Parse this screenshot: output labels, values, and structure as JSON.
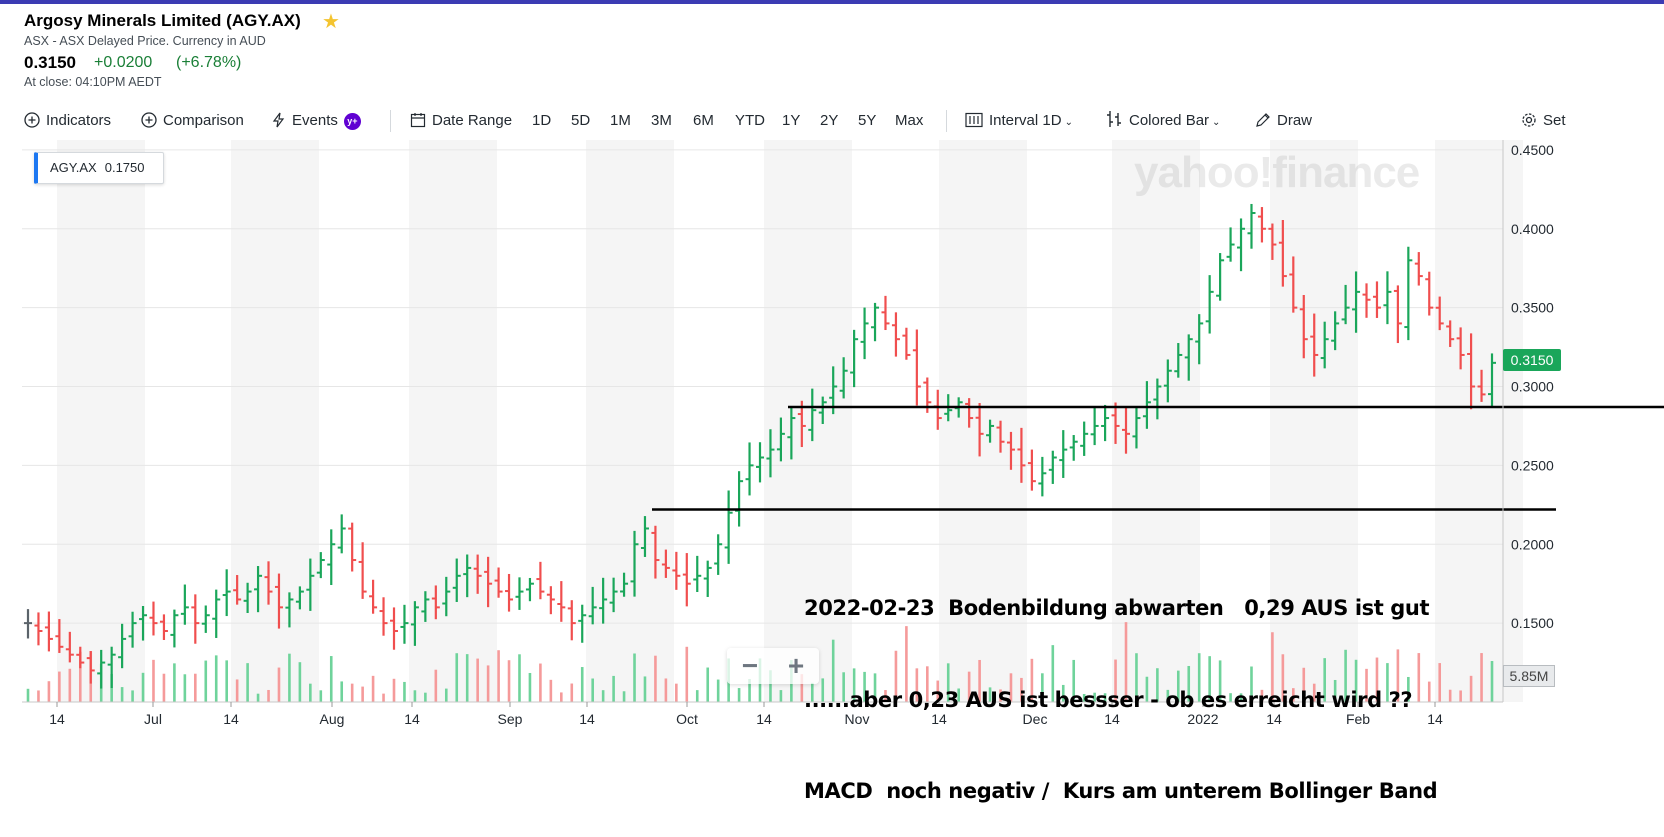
{
  "header": {
    "title": "Argosy Minerals Limited (AGY.AX)",
    "subtitle": "ASX - ASX Delayed Price. Currency in AUD",
    "price": "0.3150",
    "change": "+0.0200",
    "change_pct": "(+6.78%)",
    "close_time": "At close: 04:10PM AEDT"
  },
  "toolbar": {
    "indicators": "Indicators",
    "comparison": "Comparison",
    "events": "Events",
    "date_range": "Date Range",
    "ranges": [
      "1D",
      "5D",
      "1M",
      "3M",
      "6M",
      "YTD",
      "1Y",
      "2Y",
      "5Y",
      "Max"
    ],
    "interval_label": "Interval",
    "interval_value": "1D",
    "chart_type": "Colored Bar",
    "draw": "Draw",
    "settings": "Set"
  },
  "legend": {
    "symbol": "AGY.AX",
    "value": "0.1750"
  },
  "price_label": "0.3150",
  "volume_label": "5.85M",
  "watermark": "yahoo!finance",
  "annotation": {
    "line1": "2022-02-23  Bodenbildung abwarten   0,29 AUS ist gut",
    "line2": "......aber 0,23 AUS ist bessser - ob es erreicht wird ??",
    "line3": "MACD  noch negativ /  Kurs am unterem Bollinger Band"
  },
  "colors": {
    "up": "#1aa65a",
    "down": "#f04e4e",
    "neutral": "#5b636a",
    "accent": "#1d78f2"
  },
  "chart_data": {
    "type": "bar",
    "title": "",
    "x_tick_labels": [
      "14",
      "Jul",
      "14",
      "Aug",
      "14",
      "Sep",
      "14",
      "Oct",
      "14",
      "Nov",
      "14",
      "Dec",
      "14",
      "2022",
      "14",
      "Feb",
      "14"
    ],
    "y_ticks": [
      0.45,
      0.4,
      0.35,
      0.3,
      0.25,
      0.2,
      0.15
    ],
    "y_tick_labels": [
      "0.4500",
      "0.4000",
      "0.3500",
      "0.3000",
      "0.2500",
      "0.2000",
      "0.1500"
    ],
    "ylim": [
      0.1,
      0.455
    ],
    "grid": true,
    "horizontal_lines": [
      0.287,
      0.222
    ],
    "close_series": [
      0.15,
      0.145,
      0.14,
      0.135,
      0.13,
      0.125,
      0.12,
      0.125,
      0.13,
      0.14,
      0.15,
      0.155,
      0.15,
      0.145,
      0.155,
      0.16,
      0.15,
      0.155,
      0.165,
      0.17,
      0.165,
      0.17,
      0.18,
      0.17,
      0.16,
      0.165,
      0.17,
      0.18,
      0.19,
      0.2,
      0.21,
      0.19,
      0.17,
      0.16,
      0.15,
      0.145,
      0.15,
      0.16,
      0.165,
      0.16,
      0.17,
      0.18,
      0.185,
      0.18,
      0.175,
      0.17,
      0.165,
      0.17,
      0.175,
      0.17,
      0.165,
      0.16,
      0.15,
      0.155,
      0.16,
      0.165,
      0.17,
      0.175,
      0.2,
      0.21,
      0.19,
      0.185,
      0.18,
      0.175,
      0.18,
      0.185,
      0.2,
      0.22,
      0.24,
      0.25,
      0.255,
      0.26,
      0.27,
      0.28,
      0.275,
      0.285,
      0.29,
      0.3,
      0.31,
      0.33,
      0.34,
      0.35,
      0.34,
      0.33,
      0.32,
      0.3,
      0.29,
      0.28,
      0.285,
      0.29,
      0.28,
      0.27,
      0.275,
      0.265,
      0.26,
      0.25,
      0.24,
      0.245,
      0.255,
      0.26,
      0.265,
      0.27,
      0.275,
      0.28,
      0.275,
      0.27,
      0.28,
      0.29,
      0.3,
      0.31,
      0.32,
      0.33,
      0.34,
      0.36,
      0.38,
      0.39,
      0.4,
      0.41,
      0.4,
      0.39,
      0.37,
      0.35,
      0.33,
      0.32,
      0.33,
      0.34,
      0.35,
      0.36,
      0.355,
      0.35,
      0.36,
      0.34,
      0.38,
      0.37,
      0.35,
      0.34,
      0.33,
      0.32,
      0.3,
      0.295,
      0.315
    ]
  }
}
